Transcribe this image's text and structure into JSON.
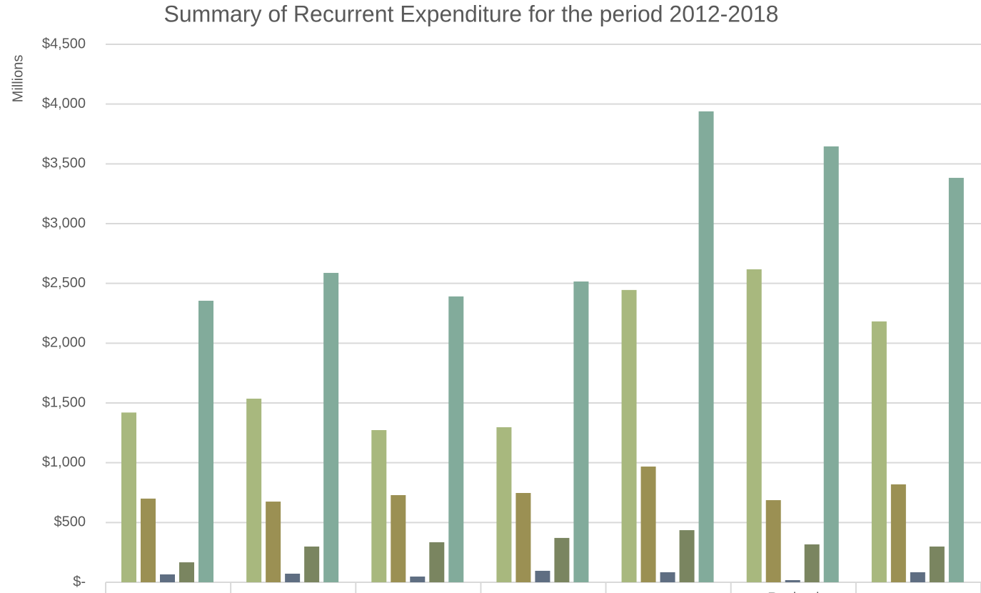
{
  "chart_data": {
    "type": "bar",
    "title": "Summary of Recurrent Expenditure for the period 2012-2018",
    "y_label": "Millions",
    "categories": [
      null,
      null,
      null,
      null,
      null,
      "Revised",
      null
    ],
    "series": [
      {
        "color": "#a8b87e",
        "values": [
          1420,
          1536,
          1273,
          1297,
          2445,
          2618,
          2182
        ]
      },
      {
        "color": "#9b9053",
        "values": [
          700,
          675,
          729,
          747,
          968,
          687,
          819
        ]
      },
      {
        "color": "#5f6e82",
        "values": [
          66,
          72,
          48,
          96,
          84,
          18,
          84
        ]
      },
      {
        "color": "#7a8560",
        "values": [
          167,
          299,
          335,
          371,
          436,
          317,
          299
        ]
      },
      {
        "color": "#82ab9b",
        "values": [
          2355,
          2588,
          2391,
          2516,
          3939,
          3646,
          3383
        ]
      }
    ],
    "ylim": [
      0,
      4500
    ],
    "yticks": [
      {
        "value": 0,
        "label": "$-"
      },
      {
        "value": 500,
        "label": "$500"
      },
      {
        "value": 1000,
        "label": "$1,000"
      },
      {
        "value": 1500,
        "label": "$1,500"
      },
      {
        "value": 2000,
        "label": "$2,000"
      },
      {
        "value": 2500,
        "label": "$2,500"
      },
      {
        "value": 3000,
        "label": "$3,000"
      },
      {
        "value": 3500,
        "label": "$3,500"
      },
      {
        "value": 4000,
        "label": "$4,000"
      },
      {
        "value": 4500,
        "label": "$4,500"
      }
    ],
    "grid": true
  }
}
